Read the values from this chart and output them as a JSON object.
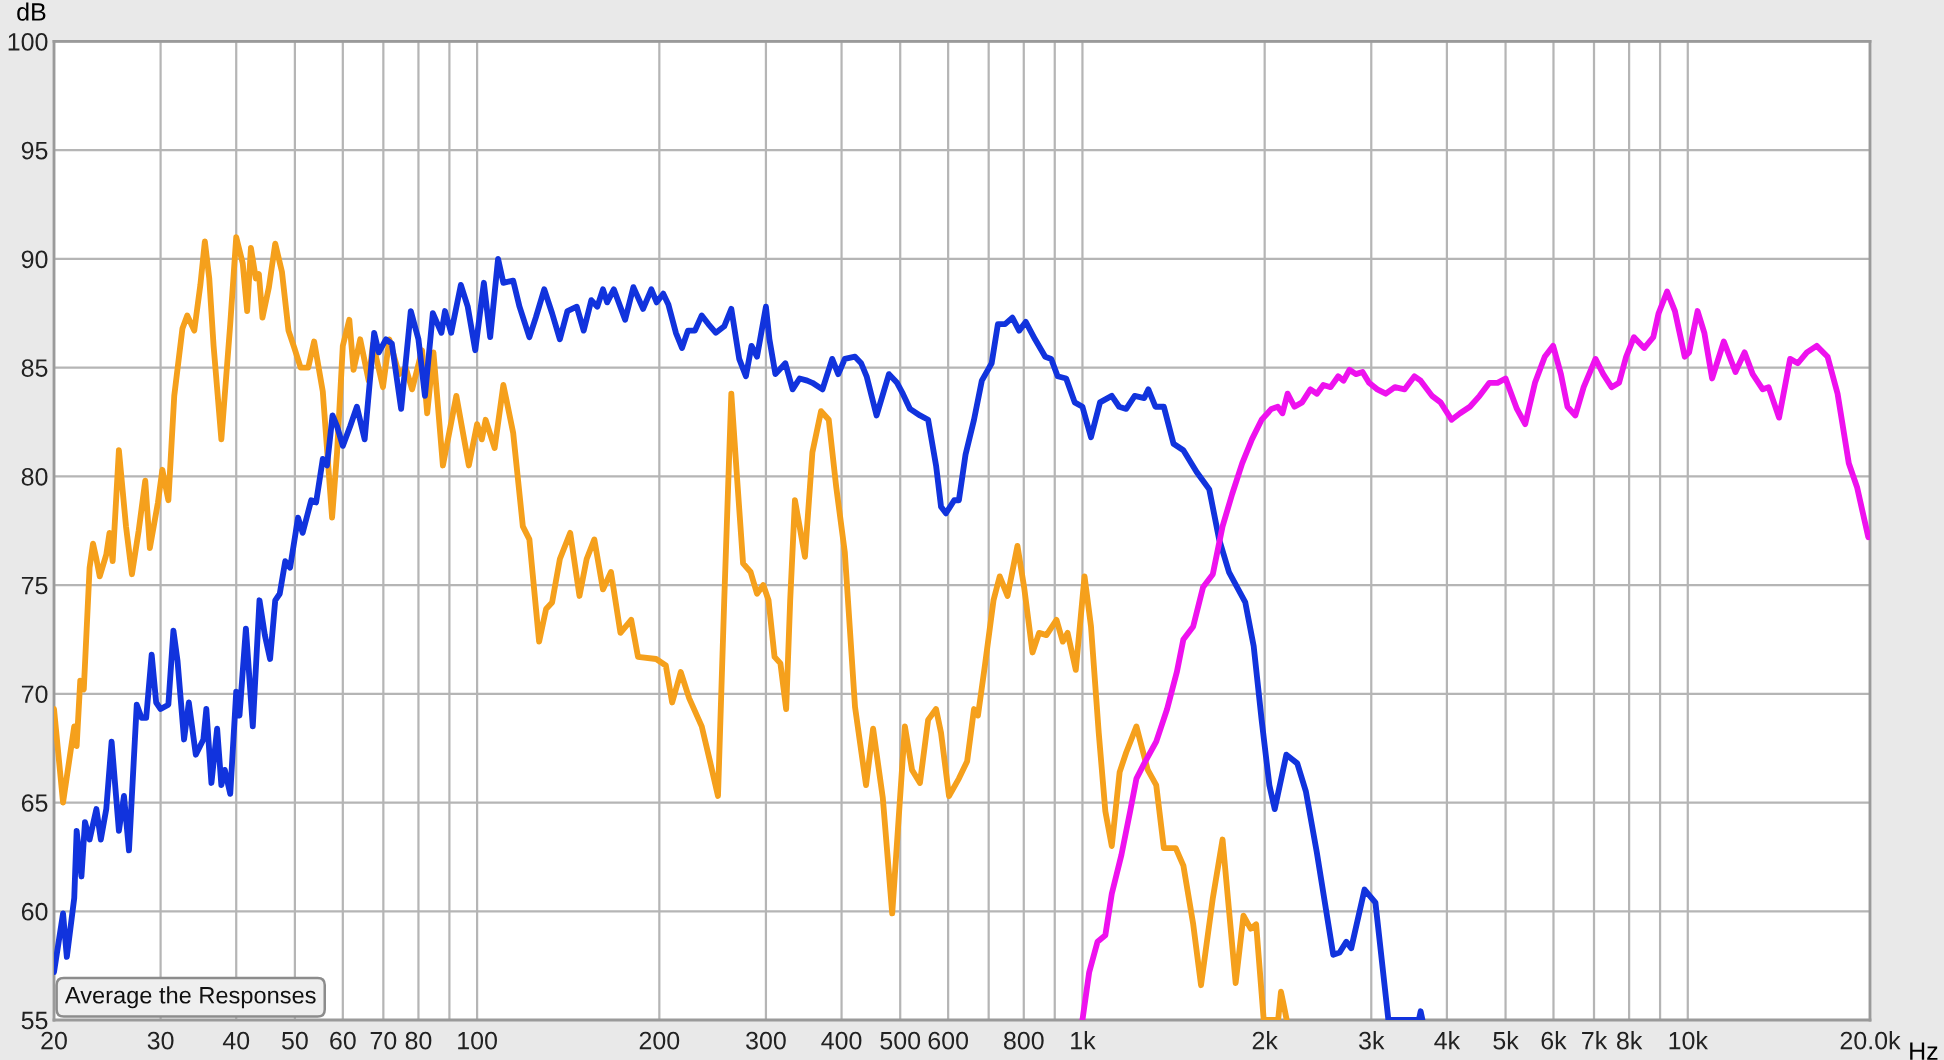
{
  "chart_data": {
    "type": "line",
    "xlabel": "Hz",
    "ylabel": "dB",
    "log": "x",
    "grid": true,
    "xlim": [
      20,
      20000
    ],
    "ylim": [
      55,
      100
    ],
    "xticks": [
      20,
      30,
      40,
      50,
      60,
      70,
      80,
      {
        "value": 90,
        "label": null
      },
      100,
      200,
      300,
      400,
      500,
      600,
      {
        "value": 700,
        "label": null
      },
      800,
      {
        "value": 900,
        "label": null
      },
      {
        "value": 1000,
        "label": "1k"
      },
      {
        "value": 2000,
        "label": "2k"
      },
      {
        "value": 3000,
        "label": "3k"
      },
      {
        "value": 4000,
        "label": "4k"
      },
      {
        "value": 5000,
        "label": "5k"
      },
      {
        "value": 6000,
        "label": "6k"
      },
      {
        "value": 7000,
        "label": "7k"
      },
      {
        "value": 8000,
        "label": "8k"
      },
      {
        "value": 9000,
        "label": null
      },
      {
        "value": 10000,
        "label": "10k"
      },
      {
        "value": 20000,
        "label": "20.0k"
      }
    ],
    "yticks": [
      55,
      60,
      65,
      70,
      75,
      80,
      85,
      90,
      95,
      100
    ],
    "annotations": [
      "Average the Responses"
    ],
    "series": [
      {
        "color": "#f5a01c",
        "x": [
          20,
          20.7,
          21.6,
          21.8,
          22.1,
          22.4,
          22.9,
          23.2,
          23.5,
          23.8,
          24.4,
          24.7,
          25.0,
          25.6,
          26.3,
          26.9,
          27.6,
          28.3,
          28.8,
          29.7,
          30.2,
          30.9,
          31.6,
          32.6,
          33.2,
          34.1,
          34.9,
          35.5,
          36.1,
          36.7,
          37.8,
          39.1,
          40.0,
          41.0,
          41.7,
          42.3,
          43.1,
          43.6,
          44.2,
          45.3,
          46.4,
          47.6,
          48.8,
          49.9,
          51.1,
          52.6,
          53.8,
          55.6,
          57.6,
          58.7,
          60.0,
          61.5,
          62.5,
          64.1,
          66.2,
          67.3,
          69.9,
          71.6,
          74.3,
          76.2,
          78.1,
          81.1,
          82.7,
          84.7,
          87.8,
          92.4,
          96.9,
          100,
          101.8,
          103.3,
          106.9,
          110.5,
          114.7,
          119,
          122,
          126.6,
          130,
          133,
          137,
          142.5,
          147.6,
          151.7,
          156.2,
          161.4,
          166.4,
          172.5,
          179.7,
          184.4,
          197.6,
          205,
          210,
          217,
          224,
          235,
          242,
          250,
          256,
          263,
          269,
          275,
          283,
          290,
          297,
          303,
          310,
          317,
          324,
          329,
          335,
          348,
          358,
          370,
          381,
          392,
          405,
          421,
          439,
          451,
          468,
          485,
          509,
          523,
          539,
          556,
          573,
          584,
          602,
          625,
          645,
          662,
          672,
          690,
          713,
          730,
          752,
          781,
          801,
          827,
          848,
          872,
          906,
          928,
          945,
          975,
          1008,
          1033,
          1064,
          1091,
          1118,
          1152,
          1181,
          1228,
          1282,
          1324,
          1363,
          1426,
          1468,
          1524,
          1570,
          1642,
          1704,
          1791,
          1845,
          1896,
          1936,
          1993,
          2105,
          2128,
          2150,
          2175
        ],
        "values": [
          69.3,
          65.0,
          68.5,
          67.6,
          70.6,
          70.2,
          75.8,
          76.9,
          76.2,
          75.4,
          76.4,
          77.4,
          76.1,
          81.2,
          77.7,
          75.5,
          77.5,
          79.8,
          76.7,
          78.8,
          80.3,
          78.9,
          83.7,
          86.8,
          87.4,
          86.7,
          88.8,
          90.8,
          89.1,
          86.0,
          81.7,
          87.0,
          91.0,
          89.8,
          87.6,
          90.5,
          89.1,
          89.3,
          87.3,
          88.7,
          90.7,
          89.4,
          86.7,
          85.9,
          85.0,
          85.0,
          86.2,
          83.9,
          78.1,
          81.1,
          86.0,
          87.2,
          84.9,
          86.3,
          84.4,
          86.1,
          84.1,
          86.3,
          84.7,
          85.0,
          84.0,
          85.8,
          82.9,
          85.7,
          80.5,
          83.7,
          80.5,
          82.4,
          81.7,
          82.6,
          81.3,
          84.2,
          82.0,
          77.7,
          77.1,
          72.4,
          73.9,
          74.2,
          76.2,
          77.4,
          74.5,
          76.2,
          77.1,
          74.8,
          75.6,
          72.8,
          73.4,
          71.7,
          71.6,
          71.3,
          69.6,
          71.0,
          69.8,
          68.5,
          67.0,
          65.3,
          74.3,
          83.8,
          79.8,
          76.0,
          75.6,
          74.6,
          75.0,
          74.3,
          71.7,
          71.4,
          69.3,
          74.3,
          78.9,
          76.3,
          81.1,
          83.0,
          82.6,
          79.5,
          76.5,
          69.4,
          65.8,
          68.4,
          65.2,
          59.9,
          68.5,
          66.5,
          65.9,
          68.8,
          69.3,
          68.2,
          65.3,
          66.1,
          66.9,
          69.3,
          69.0,
          71.3,
          74.3,
          75.4,
          74.5,
          76.8,
          74.9,
          71.9,
          72.8,
          72.7,
          73.4,
          72.4,
          72.8,
          71.1,
          75.4,
          73.1,
          68.2,
          64.6,
          63.0,
          66.4,
          67.3,
          68.5,
          66.5,
          65.8,
          62.9,
          62.9,
          62.1,
          59.4,
          56.6,
          60.6,
          63.3,
          56.7,
          59.8,
          59.2,
          59.4,
          55.0,
          55.0,
          56.3,
          55.7,
          55.0
        ]
      },
      {
        "color": "#1133dd",
        "x": [
          20,
          20.7,
          21.0,
          21.6,
          21.8,
          22.2,
          22.5,
          22.9,
          23.5,
          23.9,
          24.4,
          24.9,
          25.6,
          26.1,
          26.6,
          27.4,
          27.9,
          28.4,
          29.0,
          29.5,
          30.0,
          30.9,
          31.5,
          32.0,
          32.8,
          33.4,
          34.3,
          35.3,
          35.7,
          36.4,
          37.2,
          37.8,
          38.3,
          39.1,
          40.0,
          40.5,
          41.5,
          42.6,
          43.7,
          44.6,
          45.5,
          46.4,
          47.2,
          48.2,
          49.1,
          50.6,
          51.5,
          53.2,
          54.2,
          55.6,
          56.5,
          57.7,
          58.7,
          60.0,
          61.7,
          63.3,
          65.2,
          67.6,
          68.8,
          70.7,
          72.3,
          74.9,
          77.7,
          80,
          82,
          84.5,
          87.3,
          88.5,
          90.6,
          94.0,
          96.5,
          99.3,
          102.6,
          105.1,
          108.3,
          110.5,
          114.7,
          117.5,
          122,
          125,
          129.1,
          133,
          137,
          141,
          146.1,
          150,
          154.4,
          158,
          161.4,
          164,
          168.2,
          175.6,
          181.2,
          188,
          194,
          198,
          203,
          207,
          213,
          218,
          223,
          229,
          235,
          241,
          248,
          256,
          263,
          271,
          278,
          284,
          290,
          300,
          304,
          311,
          323,
          332,
          341,
          351,
          358,
          372,
          386,
          395,
          405,
          421,
          431,
          440,
          457,
          479,
          494,
          505,
          519,
          539,
          556,
          573,
          584,
          595,
          614,
          625,
          641,
          662,
          682,
          708,
          725,
          745,
          766,
          786,
          806,
          835,
          868,
          888,
          910,
          940,
          971,
          1000,
          1033,
          1069,
          1118,
          1150,
          1181,
          1220,
          1265,
          1285,
          1320,
          1363,
          1414,
          1468,
          1544,
          1620,
          1682,
          1746,
          1858,
          1918,
          1977,
          2036,
          2078,
          2172,
          2264,
          2340,
          2439,
          2596,
          2660,
          2728,
          2780,
          2924,
          3048,
          3202,
          3595,
          3620,
          3645
        ],
        "values": [
          57.2,
          59.9,
          57.9,
          60.6,
          63.7,
          61.6,
          64.1,
          63.3,
          64.7,
          63.3,
          64.7,
          67.8,
          63.7,
          65.3,
          62.8,
          69.5,
          68.9,
          68.9,
          71.8,
          69.6,
          69.3,
          69.5,
          72.9,
          71.5,
          67.9,
          69.6,
          67.2,
          67.9,
          69.3,
          65.9,
          68.4,
          65.8,
          66.5,
          65.4,
          70.1,
          69.0,
          73.0,
          68.5,
          74.3,
          72.7,
          71.6,
          74.3,
          74.6,
          76.1,
          75.8,
          78.1,
          77.4,
          78.9,
          78.8,
          80.8,
          80.5,
          82.8,
          82.3,
          81.4,
          82.3,
          83.2,
          81.7,
          86.6,
          85.7,
          86.3,
          86.1,
          83.1,
          87.6,
          86.3,
          83.7,
          87.5,
          86.6,
          87.6,
          86.6,
          88.8,
          87.8,
          85.8,
          88.9,
          86.4,
          90.0,
          88.9,
          89.0,
          87.8,
          86.4,
          87.3,
          88.6,
          87.5,
          86.3,
          87.6,
          87.8,
          86.7,
          88.1,
          87.8,
          88.6,
          88.0,
          88.6,
          87.2,
          88.7,
          87.7,
          88.6,
          88.0,
          88.4,
          87.9,
          86.6,
          85.9,
          86.7,
          86.7,
          87.4,
          87.0,
          86.6,
          86.9,
          87.7,
          85.4,
          84.6,
          86.0,
          85.5,
          87.8,
          86.3,
          84.7,
          85.2,
          84.0,
          84.5,
          84.4,
          84.3,
          84.0,
          85.4,
          84.7,
          85.4,
          85.5,
          85.2,
          84.6,
          82.8,
          84.7,
          84.3,
          83.8,
          83.1,
          82.8,
          82.6,
          80.5,
          78.6,
          78.3,
          78.9,
          78.9,
          81.0,
          82.6,
          84.4,
          85.2,
          87.0,
          87.0,
          87.3,
          86.7,
          87.1,
          86.3,
          85.5,
          85.4,
          84.6,
          84.5,
          83.4,
          83.2,
          81.8,
          83.4,
          83.7,
          83.2,
          83.1,
          83.7,
          83.6,
          84.0,
          83.2,
          83.2,
          81.5,
          81.2,
          80.2,
          79.4,
          77.1,
          75.6,
          74.2,
          72.2,
          68.8,
          65.8,
          64.7,
          67.2,
          66.8,
          65.5,
          62.7,
          58.0,
          58.1,
          58.6,
          58.3,
          61.0,
          60.4,
          55.0,
          55.0,
          55.4,
          55.0
        ]
      },
      {
        "color": "#ee11ee",
        "x": [
          1000,
          1026,
          1059,
          1091,
          1118,
          1160,
          1199,
          1228,
          1265,
          1324,
          1380,
          1432,
          1468,
          1524,
          1582,
          1642,
          1704,
          1768,
          1836,
          1905,
          1977,
          2052,
          2102,
          2140,
          2182,
          2240,
          2306,
          2380,
          2440,
          2500,
          2570,
          2646,
          2700,
          2761,
          2830,
          2902,
          2975,
          3070,
          3170,
          3282,
          3406,
          3536,
          3620,
          3780,
          3905,
          4072,
          4206,
          4366,
          4530,
          4702,
          4850,
          5000,
          5221,
          5388,
          5592,
          5804,
          5992,
          6172,
          6328,
          6520,
          6730,
          7040,
          7250,
          7484,
          7700,
          7910,
          8149,
          8472,
          8771,
          8950,
          9244,
          9523,
          9884,
          10050,
          10380,
          10650,
          10970,
          11470,
          11990,
          12410,
          12800,
          13300,
          13600,
          14150,
          14760,
          15200,
          15730,
          16330,
          17020,
          17680,
          18450,
          19040,
          19870
        ],
        "values": [
          55.0,
          57.2,
          58.6,
          58.9,
          60.8,
          62.6,
          64.6,
          66.1,
          66.8,
          67.8,
          69.3,
          71.0,
          72.5,
          73.1,
          74.9,
          75.5,
          77.7,
          79.2,
          80.6,
          81.7,
          82.6,
          83.1,
          83.2,
          82.9,
          83.8,
          83.2,
          83.4,
          84.0,
          83.8,
          84.2,
          84.1,
          84.6,
          84.4,
          84.9,
          84.7,
          84.8,
          84.3,
          84.0,
          83.8,
          84.1,
          84.0,
          84.6,
          84.4,
          83.7,
          83.4,
          82.6,
          82.9,
          83.2,
          83.7,
          84.3,
          84.3,
          84.5,
          83.1,
          82.4,
          84.3,
          85.5,
          86.0,
          84.7,
          83.2,
          82.8,
          84.1,
          85.4,
          84.7,
          84.1,
          84.3,
          85.5,
          86.4,
          85.9,
          86.4,
          87.5,
          88.5,
          87.6,
          85.5,
          85.7,
          87.6,
          86.6,
          84.5,
          86.2,
          84.8,
          85.7,
          84.7,
          84.0,
          84.1,
          82.7,
          85.4,
          85.2,
          85.7,
          86.0,
          85.5,
          83.8,
          80.6,
          79.5,
          77.2
        ]
      }
    ]
  }
}
